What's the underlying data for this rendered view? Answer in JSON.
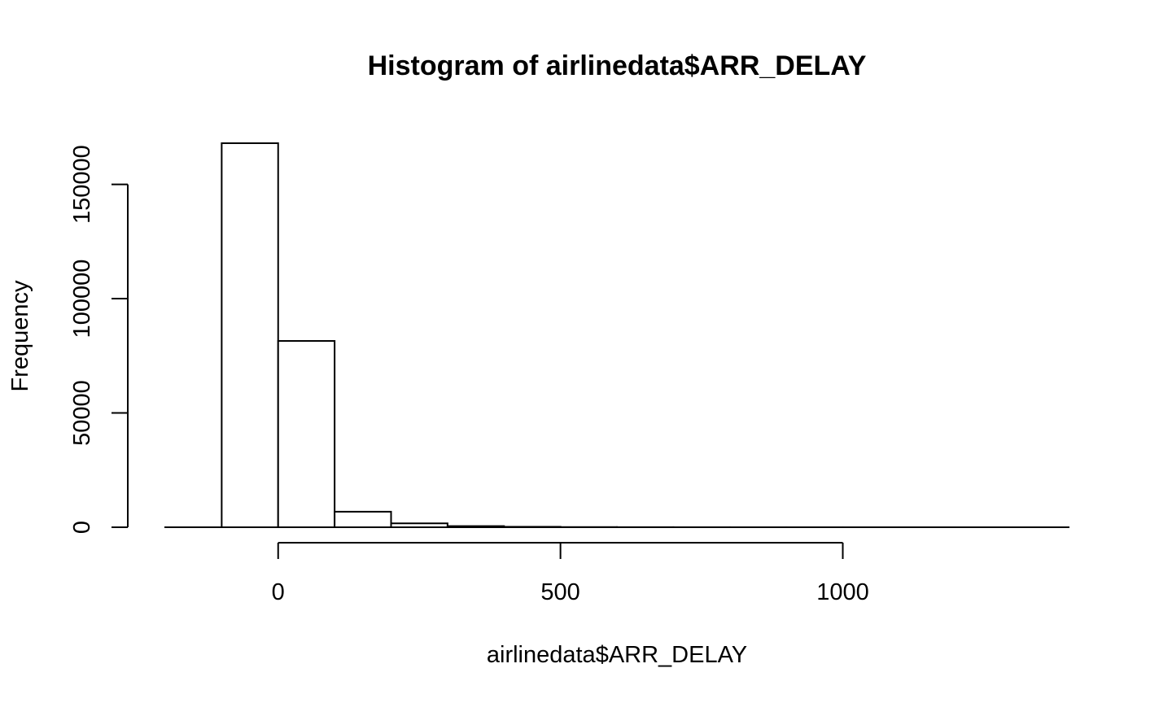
{
  "chart_data": {
    "type": "bar",
    "title": "Histogram of airlinedata$ARR_DELAY",
    "xlabel": "airlinedata$ARR_DELAY",
    "ylabel": "Frequency",
    "bins": [
      {
        "start": -100,
        "end": 0,
        "count": 168000
      },
      {
        "start": 0,
        "end": 100,
        "count": 81500
      },
      {
        "start": 100,
        "end": 200,
        "count": 6800
      },
      {
        "start": 200,
        "end": 300,
        "count": 1700
      },
      {
        "start": 300,
        "end": 400,
        "count": 500
      },
      {
        "start": 400,
        "end": 500,
        "count": 200
      },
      {
        "start": 500,
        "end": 600,
        "count": 80
      },
      {
        "start": 600,
        "end": 700,
        "count": 40
      },
      {
        "start": 700,
        "end": 800,
        "count": 20
      },
      {
        "start": 800,
        "end": 900,
        "count": 10
      },
      {
        "start": 900,
        "end": 1000,
        "count": 8
      },
      {
        "start": 1000,
        "end": 1100,
        "count": 5
      },
      {
        "start": 1100,
        "end": 1200,
        "count": 3
      },
      {
        "start": 1200,
        "end": 1300,
        "count": 2
      },
      {
        "start": 1300,
        "end": 1400,
        "count": 1
      },
      {
        "start": -200,
        "end": -100,
        "count": 5
      }
    ],
    "xticks": [
      0,
      500,
      1000
    ],
    "yticks": [
      0,
      50000,
      100000,
      150000
    ],
    "xlim": [
      -200,
      1400
    ],
    "ylim": [
      0,
      168000
    ],
    "grid": false
  }
}
